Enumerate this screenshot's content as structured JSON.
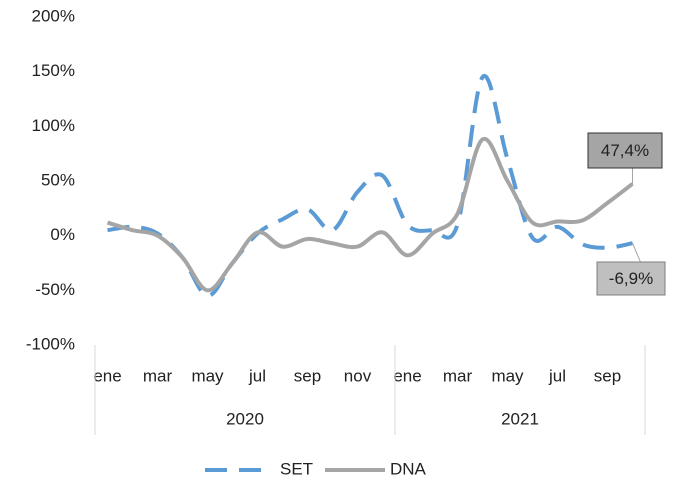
{
  "chart_data": {
    "type": "line",
    "categories": [
      "ene",
      null,
      "mar",
      null,
      "may",
      null,
      "jul",
      null,
      "sep",
      null,
      "nov",
      null,
      "ene",
      null,
      "mar",
      null,
      "may",
      null,
      "jul",
      null,
      "sep",
      null
    ],
    "groups": [
      {
        "name": "2020",
        "count": 12
      },
      {
        "name": "2021",
        "count": 10
      }
    ],
    "series": [
      {
        "name": "SET",
        "color": "#5b9bd5",
        "dash": true,
        "values": [
          5,
          8,
          2,
          -20,
          -55,
          -25,
          2,
          15,
          24,
          5,
          40,
          55,
          10,
          5,
          10,
          145,
          70,
          -2,
          8,
          -8,
          -11,
          -6.9
        ],
        "value_labels": [
          null,
          null,
          null,
          null,
          null,
          null,
          null,
          null,
          null,
          null,
          null,
          null,
          null,
          null,
          null,
          null,
          null,
          null,
          null,
          null,
          null,
          "-6,9%"
        ]
      },
      {
        "name": "DNA",
        "color": "#a5a5a5",
        "dash": false,
        "values": [
          12,
          5,
          0,
          -20,
          -50,
          -25,
          3,
          -10,
          -3,
          -7,
          -10,
          3,
          -18,
          2,
          20,
          88,
          50,
          12,
          13,
          14,
          30,
          47.4
        ],
        "value_labels": [
          null,
          null,
          null,
          null,
          null,
          null,
          null,
          null,
          null,
          null,
          null,
          null,
          null,
          null,
          null,
          null,
          null,
          null,
          null,
          null,
          null,
          "47,4%"
        ]
      }
    ],
    "ylim": [
      -100,
      200
    ],
    "yticks": [
      {
        "value": -100,
        "label": "-100%"
      },
      {
        "value": -50,
        "label": "-50%"
      },
      {
        "value": 0,
        "label": "0%"
      },
      {
        "value": 50,
        "label": "50%"
      },
      {
        "value": 100,
        "label": "100%"
      },
      {
        "value": 150,
        "label": "150%"
      },
      {
        "value": 200,
        "label": "200%"
      }
    ],
    "legend": "bottom"
  }
}
